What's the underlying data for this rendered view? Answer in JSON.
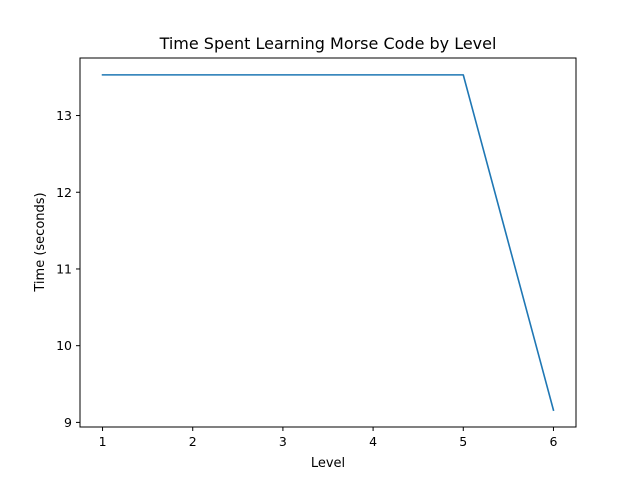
{
  "chart_data": {
    "type": "line",
    "title": "Time Spent Learning Morse Code by Level",
    "xlabel": "Level",
    "ylabel": "Time (seconds)",
    "x": [
      1,
      2,
      3,
      4,
      5,
      6
    ],
    "series": [
      {
        "values": [
          13.53,
          13.53,
          13.53,
          13.53,
          13.53,
          9.16
        ],
        "color": "#1f77b4"
      }
    ],
    "xlim": [
      0.75,
      6.25
    ],
    "ylim": [
      8.94,
      13.75
    ],
    "xticks": [
      1,
      2,
      3,
      4,
      5,
      6
    ],
    "yticks": [
      9,
      10,
      11,
      12,
      13
    ],
    "grid": false
  }
}
